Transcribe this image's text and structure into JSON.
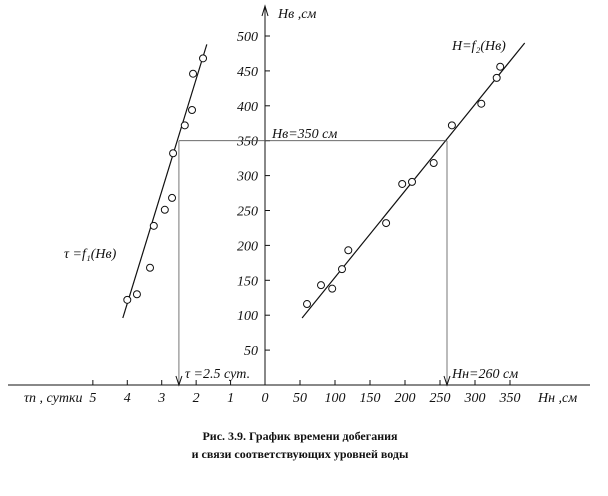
{
  "chart_data": [
    {
      "type": "scatter",
      "x_label": "τп , сутки",
      "xlim": [
        7,
        0
      ],
      "xticks": [
        5,
        4,
        3,
        2,
        1
      ],
      "ylim": [
        0,
        500
      ],
      "x": [
        4.0,
        3.72,
        3.34,
        3.23,
        2.91,
        2.7,
        2.67,
        2.33,
        2.12,
        2.09,
        1.8
      ],
      "y": [
        122,
        130,
        168,
        228,
        251,
        268,
        332,
        372,
        394,
        446,
        468
      ],
      "fit_line": {
        "x": [
          4.13,
          1.69
        ],
        "y": [
          96,
          488
        ]
      },
      "ref_x": 2.5,
      "ref_label": "τ =2.5 сут.",
      "curve_label": "τ =f₁(Hв)"
    },
    {
      "type": "scatter",
      "x_label": "Hн ,см",
      "y_label": "Hв ,см",
      "xlim": [
        0,
        450
      ],
      "xticks": [
        0,
        50,
        100,
        150,
        200,
        250,
        300,
        350
      ],
      "ylim": [
        0,
        500
      ],
      "yticks": [
        50,
        100,
        150,
        200,
        250,
        300,
        350,
        400,
        450,
        500
      ],
      "x": [
        60,
        80,
        96,
        110,
        119,
        173,
        196,
        210,
        241,
        267,
        309,
        331,
        336
      ],
      "y": [
        116,
        143,
        138,
        166,
        193,
        232,
        288,
        291,
        318,
        372,
        403,
        440,
        456
      ],
      "fit_line": {
        "x": [
          53,
          371
        ],
        "y": [
          96,
          490
        ]
      },
      "ref_x": 260,
      "ref_y": 350,
      "ref_label": "Hн=260 см",
      "ref_y_label": "Hв=350 см",
      "curve_label": "H=f₂(Hв)"
    }
  ],
  "caption": [
    "Рис. 3.9. График времени добегания",
    "и связи соответствующих уровней воды"
  ]
}
